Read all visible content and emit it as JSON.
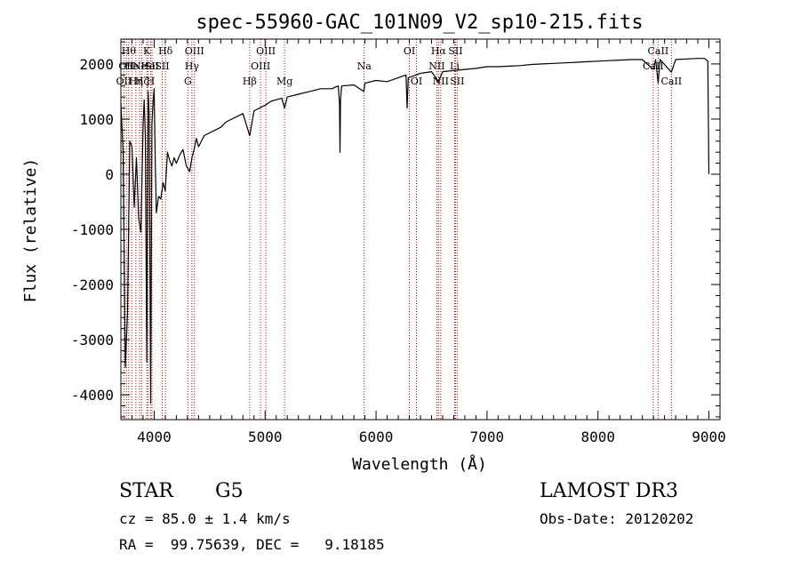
{
  "chart_data": {
    "type": "line",
    "title": "spec-55960-GAC_101N09_V2_sp10-215.fits",
    "xlabel": "Wavelength (Å)",
    "ylabel": "Flux (relative)",
    "xlim": [
      3700,
      9100
    ],
    "ylim": [
      -4450,
      2450
    ],
    "x_ticks": [
      4000,
      5000,
      6000,
      7000,
      8000,
      9000
    ],
    "y_ticks": [
      -4000,
      -3000,
      -2000,
      -1000,
      0,
      1000,
      2000
    ],
    "grid": false,
    "line_color": "#000000",
    "marker_color": "#cc0000",
    "series": [
      {
        "points": [
          [
            3700,
            1300
          ],
          [
            3720,
            400
          ],
          [
            3740,
            -3500
          ],
          [
            3760,
            -2500
          ],
          [
            3780,
            600
          ],
          [
            3800,
            500
          ],
          [
            3820,
            -600
          ],
          [
            3840,
            300
          ],
          [
            3860,
            -800
          ],
          [
            3880,
            -1050
          ],
          [
            3900,
            900
          ],
          [
            3910,
            1350
          ],
          [
            3920,
            700
          ],
          [
            3933,
            -3400
          ],
          [
            3945,
            1500
          ],
          [
            3955,
            1100
          ],
          [
            3968,
            -4150
          ],
          [
            3980,
            900
          ],
          [
            3990,
            1300
          ],
          [
            4000,
            1550
          ],
          [
            4010,
            200
          ],
          [
            4020,
            -700
          ],
          [
            4040,
            -400
          ],
          [
            4060,
            -450
          ],
          [
            4080,
            -150
          ],
          [
            4100,
            -300
          ],
          [
            4120,
            400
          ],
          [
            4140,
            250
          ],
          [
            4160,
            150
          ],
          [
            4180,
            300
          ],
          [
            4200,
            200
          ],
          [
            4230,
            350
          ],
          [
            4260,
            450
          ],
          [
            4290,
            150
          ],
          [
            4320,
            50
          ],
          [
            4340,
            300
          ],
          [
            4360,
            450
          ],
          [
            4380,
            650
          ],
          [
            4400,
            500
          ],
          [
            4450,
            700
          ],
          [
            4500,
            750
          ],
          [
            4550,
            800
          ],
          [
            4600,
            850
          ],
          [
            4650,
            950
          ],
          [
            4700,
            1000
          ],
          [
            4750,
            1050
          ],
          [
            4800,
            1100
          ],
          [
            4861,
            700
          ],
          [
            4900,
            1150
          ],
          [
            4950,
            1200
          ],
          [
            5000,
            1250
          ],
          [
            5050,
            1320
          ],
          [
            5100,
            1350
          ],
          [
            5150,
            1380
          ],
          [
            5175,
            1200
          ],
          [
            5200,
            1400
          ],
          [
            5300,
            1450
          ],
          [
            5400,
            1500
          ],
          [
            5500,
            1550
          ],
          [
            5600,
            1550
          ],
          [
            5660,
            1600
          ],
          [
            5670,
            1300
          ],
          [
            5675,
            400
          ],
          [
            5680,
            1350
          ],
          [
            5690,
            1600
          ],
          [
            5800,
            1620
          ],
          [
            5890,
            1500
          ],
          [
            5900,
            1650
          ],
          [
            6000,
            1700
          ],
          [
            6100,
            1680
          ],
          [
            6200,
            1750
          ],
          [
            6270,
            1800
          ],
          [
            6280,
            1200
          ],
          [
            6290,
            1750
          ],
          [
            6400,
            1830
          ],
          [
            6500,
            1860
          ],
          [
            6563,
            1680
          ],
          [
            6600,
            1860
          ],
          [
            6700,
            1880
          ],
          [
            6800,
            1900
          ],
          [
            6900,
            1920
          ],
          [
            7000,
            1950
          ],
          [
            7100,
            1950
          ],
          [
            7200,
            1960
          ],
          [
            7300,
            1970
          ],
          [
            7400,
            1990
          ],
          [
            7500,
            2000
          ],
          [
            7600,
            2010
          ],
          [
            7700,
            2020
          ],
          [
            7800,
            2030
          ],
          [
            7900,
            2040
          ],
          [
            8000,
            2050
          ],
          [
            8100,
            2060
          ],
          [
            8200,
            2070
          ],
          [
            8300,
            2080
          ],
          [
            8400,
            2080
          ],
          [
            8498,
            1900
          ],
          [
            8520,
            2080
          ],
          [
            8542,
            1650
          ],
          [
            8560,
            2080
          ],
          [
            8662,
            1850
          ],
          [
            8700,
            2080
          ],
          [
            8800,
            2090
          ],
          [
            8900,
            2100
          ],
          [
            8960,
            2100
          ],
          [
            8990,
            2050
          ],
          [
            9000,
            0
          ]
        ]
      }
    ],
    "line_markers": [
      {
        "x": 3727,
        "label": "OII",
        "row": 3
      },
      {
        "x": 3750,
        "label": "OII",
        "row": 2
      },
      {
        "x": 3771,
        "label": "Hθ",
        "row": 1
      },
      {
        "x": 3798,
        "label": "He",
        "row": 2
      },
      {
        "x": 3835,
        "label": "Hη",
        "row": 3
      },
      {
        "x": 3869,
        "label": "Ne",
        "row": 2
      },
      {
        "x": 3889,
        "label": "Hζ",
        "row": 3
      },
      {
        "x": 3933,
        "label": "K",
        "row": 1
      },
      {
        "x": 3945,
        "label": "He",
        "row": 2
      },
      {
        "x": 3968,
        "label": "H",
        "row": 3
      },
      {
        "x": 3980,
        "label": "SII",
        "row": 2
      },
      {
        "x": 4102,
        "label": "Hδ",
        "row": 1
      },
      {
        "x": 4072,
        "label": "SII",
        "row": 2
      },
      {
        "x": 4304,
        "label": "G",
        "row": 3
      },
      {
        "x": 4340,
        "label": "Hγ",
        "row": 2
      },
      {
        "x": 4363,
        "label": "OIII",
        "row": 1
      },
      {
        "x": 4861,
        "label": "Hβ",
        "row": 3
      },
      {
        "x": 4959,
        "label": "OIII",
        "row": 2
      },
      {
        "x": 5007,
        "label": "OIII",
        "row": 1
      },
      {
        "x": 5175,
        "label": "Mg",
        "row": 3
      },
      {
        "x": 5893,
        "label": "Na",
        "row": 2
      },
      {
        "x": 6300,
        "label": "OI",
        "row": 1
      },
      {
        "x": 6364,
        "label": "OI",
        "row": 3
      },
      {
        "x": 6548,
        "label": "NII",
        "row": 2
      },
      {
        "x": 6563,
        "label": "Hα",
        "row": 1
      },
      {
        "x": 6583,
        "label": "NII",
        "row": 3
      },
      {
        "x": 6708,
        "label": "Li",
        "row": 2
      },
      {
        "x": 6716,
        "label": "SII",
        "row": 1
      },
      {
        "x": 6731,
        "label": "SII",
        "row": 3
      },
      {
        "x": 8498,
        "label": "CaII",
        "row": 2
      },
      {
        "x": 8542,
        "label": "CaII",
        "row": 1
      },
      {
        "x": 8662,
        "label": "CaII",
        "row": 3
      }
    ]
  },
  "info": {
    "object_class": "STAR",
    "subclass": "G5",
    "survey": "LAMOST DR3",
    "redshift": "cz = 85.0 ± 1.4 km/s",
    "obs_date": "Obs-Date: 20120202",
    "coords": "RA =  99.75639, DEC =   9.18185"
  }
}
